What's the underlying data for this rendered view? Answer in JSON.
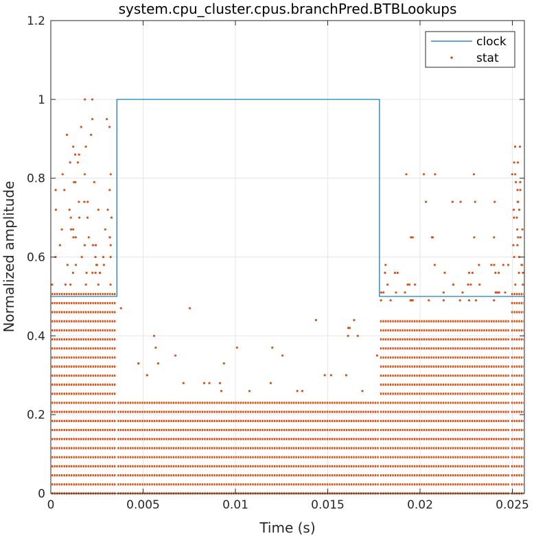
{
  "chart_data": {
    "type": "line+scatter",
    "title": "system.cpu_cluster.cpus.branchPred.BTBLookups",
    "xlabel": "Time (s)",
    "ylabel": "Normalized amplitude",
    "xlim": [
      0,
      0.02565
    ],
    "ylim": [
      0,
      1.2
    ],
    "xticks": [
      0,
      0.005,
      0.01,
      0.015,
      0.02,
      0.025
    ],
    "xtick_labels": [
      "0",
      "0.005",
      "0.01",
      "0.015",
      "0.02",
      "0.025"
    ],
    "yticks": [
      0,
      0.2,
      0.4,
      0.6,
      0.8,
      1,
      1.2
    ],
    "ytick_labels": [
      "0",
      "0.2",
      "0.4",
      "0.6",
      "0.8",
      "1",
      "1.2"
    ],
    "grid": true,
    "legend_position": "top-right",
    "colors": {
      "clock": "#0072BD",
      "stat": "#D95319",
      "grid": "#e6e6e6",
      "axis": "#262626"
    },
    "series": [
      {
        "name": "clock",
        "kind": "line",
        "x": [
          0,
          0.00358,
          0.00358,
          0.0178,
          0.0178,
          0.02565
        ],
        "y": [
          0.5,
          0.5,
          1.0,
          1.0,
          0.5,
          0.5
        ]
      },
      {
        "name": "stat",
        "kind": "scatter",
        "quantization_step": 0.023,
        "bands": [
          {
            "x_range": [
              0,
              0.00358
            ],
            "dense_levels_up_to": 0.51,
            "sparse_levels": [
              0.53,
              0.56,
              0.58,
              0.6,
              0.63,
              0.65,
              0.67,
              0.7,
              0.72,
              0.74,
              0.77,
              0.79,
              0.81,
              0.84,
              0.86,
              0.88,
              0.91,
              0.93,
              0.95,
              1.0
            ]
          },
          {
            "x_range": [
              0.00358,
              0.0178
            ],
            "dense_levels_up_to": 0.23,
            "sparse_levels": [
              0.26,
              0.28,
              0.3,
              0.33,
              0.35,
              0.37,
              0.4,
              0.42,
              0.44,
              0.47
            ]
          },
          {
            "x_range": [
              0.0178,
              0.0249
            ],
            "dense_levels_up_to": 0.44,
            "sparse_levels": [
              0.49,
              0.51,
              0.53,
              0.56,
              0.58,
              0.65,
              0.74,
              0.81
            ]
          },
          {
            "x_range": [
              0.0249,
              0.02565
            ],
            "dense_levels_up_to": 0.51,
            "sparse_levels": [
              0.53,
              0.56,
              0.58,
              0.6,
              0.63,
              0.65,
              0.67,
              0.7,
              0.72,
              0.74,
              0.77,
              0.79,
              0.81,
              0.84,
              0.88
            ]
          }
        ]
      }
    ]
  }
}
